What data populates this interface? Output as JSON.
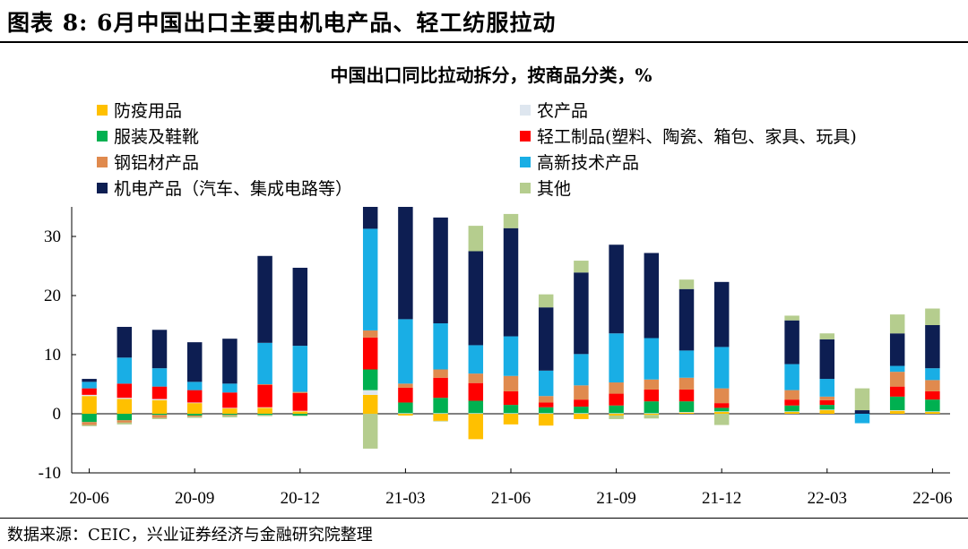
{
  "figure_title": "图表 8: 6月中国出口主要由机电产品、轻工纺服拉动",
  "source_note": "数据来源：CEIC，兴业证券经济与金融研究院整理",
  "chart_data": {
    "type": "bar",
    "stacked": true,
    "title": "中国出口同比拉动拆分，按商品分类，%",
    "xlabel": "",
    "ylabel": "",
    "ylim": [
      -10,
      35
    ],
    "yticks": [
      -10,
      0,
      10,
      20,
      30
    ],
    "categories": [
      "20-06",
      "20-07",
      "20-08",
      "20-09",
      "20-10",
      "20-11",
      "20-12",
      "21-01",
      "21-02",
      "21-03",
      "21-04",
      "21-05",
      "21-06",
      "21-07",
      "21-08",
      "21-09",
      "21-10",
      "21-11",
      "21-12",
      "22-01",
      "22-02",
      "22-03",
      "22-04",
      "22-05",
      "22-06"
    ],
    "xtick_labels": [
      "20-06",
      "20-09",
      "20-12",
      "21-03",
      "21-06",
      "21-09",
      "21-12",
      "22-03",
      "22-06"
    ],
    "legend_position": "top",
    "series": [
      {
        "name": "防疫用品",
        "color": "#FFC000",
        "values": [
          3.0,
          2.5,
          2.3,
          1.8,
          0.9,
          1.0,
          0.4,
          null,
          3.2,
          -0.3,
          -1.2,
          -4.3,
          -1.8,
          -2.0,
          -0.9,
          -0.3,
          -0.2,
          0.2,
          0.3,
          null,
          0.3,
          0.6,
          null,
          0.5,
          0.3
        ]
      },
      {
        "name": "农产品",
        "color": "#DEE6EF",
        "values": [
          0.2,
          0.2,
          0.2,
          0.1,
          0.1,
          0.1,
          0.1,
          null,
          0.8,
          0.1,
          0.1,
          0.1,
          0.1,
          0.1,
          0.1,
          0.1,
          0.1,
          0.1,
          0.1,
          null,
          0.1,
          0.1,
          null,
          0.1,
          0.1
        ]
      },
      {
        "name": "服装及鞋靴",
        "color": "#00B050",
        "values": [
          -1.4,
          -1.1,
          -0.2,
          -0.3,
          -0.2,
          -0.2,
          -0.3,
          null,
          3.5,
          1.8,
          2.6,
          2.1,
          1.4,
          1.0,
          1.1,
          1.3,
          2.0,
          1.8,
          0.6,
          null,
          1.0,
          0.8,
          null,
          2.3,
          2.0
        ]
      },
      {
        "name": "轻工制品(塑料、陶瓷、箱包、家具、玩具)",
        "color": "#FF0000",
        "values": [
          1.1,
          2.4,
          2.1,
          2.1,
          2.6,
          3.8,
          3.0,
          null,
          5.4,
          2.5,
          3.4,
          3.0,
          2.3,
          0.8,
          1.2,
          2.0,
          2.0,
          2.0,
          0.8,
          null,
          1.0,
          0.8,
          null,
          1.7,
          1.4
        ]
      },
      {
        "name": "钢铝材产品",
        "color": "#E08A4E",
        "values": [
          -0.5,
          -0.4,
          -0.5,
          -0.2,
          -0.1,
          0.1,
          0.2,
          null,
          1.2,
          0.7,
          1.4,
          1.6,
          2.6,
          1.1,
          2.4,
          1.9,
          1.7,
          2.0,
          2.5,
          null,
          1.6,
          0.6,
          null,
          2.5,
          1.9
        ]
      },
      {
        "name": "高新技术产品",
        "color": "#19AEE5",
        "values": [
          1.1,
          4.4,
          3.1,
          1.4,
          1.5,
          7.0,
          7.8,
          null,
          17.2,
          10.9,
          7.8,
          4.8,
          6.7,
          4.3,
          5.3,
          8.3,
          7.0,
          4.6,
          7.0,
          null,
          4.4,
          3.0,
          -1.6,
          1.0,
          2.0
        ]
      },
      {
        "name": "机电产品（汽车、集成电路等）",
        "color": "#0D1E52",
        "values": [
          0.5,
          5.2,
          6.5,
          6.7,
          7.6,
          14.7,
          13.2,
          null,
          3.8,
          19.2,
          17.9,
          15.9,
          18.3,
          10.7,
          13.8,
          15.0,
          14.4,
          10.4,
          11.0,
          null,
          7.4,
          6.7,
          0.6,
          5.5,
          7.3
        ]
      },
      {
        "name": "其他",
        "color": "#B5CD8E",
        "values": [
          -0.2,
          -0.3,
          -0.2,
          -0.2,
          -0.3,
          -0.2,
          -0.1,
          null,
          -5.9,
          0,
          -0.1,
          4.3,
          2.4,
          2.2,
          2.0,
          -0.6,
          -0.6,
          1.6,
          -1.9,
          null,
          0.8,
          1.0,
          3.7,
          3.2,
          2.8
        ]
      }
    ]
  }
}
